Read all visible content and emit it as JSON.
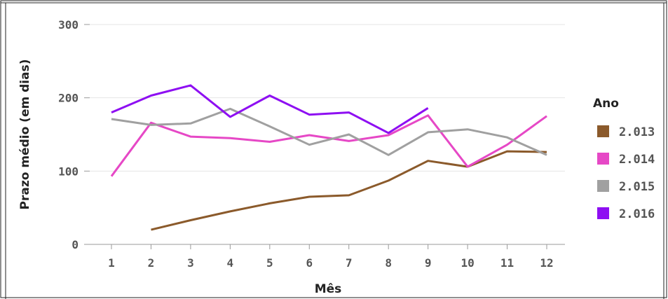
{
  "chart_data": {
    "type": "line",
    "xlabel": "Mês",
    "ylabel": "Prazo médio (em dias)",
    "x": [
      1,
      2,
      3,
      4,
      5,
      6,
      7,
      8,
      9,
      10,
      11,
      12
    ],
    "x_tick_labels": [
      "1",
      "2",
      "3",
      "4",
      "5",
      "6",
      "7",
      "8",
      "9",
      "10",
      "11",
      "12"
    ],
    "ylim": [
      0,
      300
    ],
    "y_ticks": [
      0,
      100,
      200,
      300
    ],
    "y_tick_labels": [
      "0",
      "100",
      "200",
      "300"
    ],
    "grid": true,
    "legend": {
      "title": "Ano",
      "placement": "right"
    },
    "series": [
      {
        "name": "2.013",
        "color": "#8B5A2B",
        "values": [
          null,
          20,
          33,
          45,
          56,
          65,
          67,
          87,
          114,
          106,
          127,
          126
        ]
      },
      {
        "name": "2.014",
        "color": "#E648C6",
        "values": [
          93,
          166,
          147,
          145,
          140,
          149,
          141,
          149,
          176,
          106,
          136,
          175
        ]
      },
      {
        "name": "2.015",
        "color": "#A0A0A0",
        "values": [
          171,
          163,
          165,
          185,
          161,
          136,
          150,
          122,
          153,
          157,
          146,
          122
        ]
      },
      {
        "name": "2.016",
        "color": "#8E0FF2",
        "values": [
          180,
          203,
          217,
          174,
          203,
          177,
          180,
          152,
          186,
          null,
          null,
          null
        ]
      }
    ]
  }
}
